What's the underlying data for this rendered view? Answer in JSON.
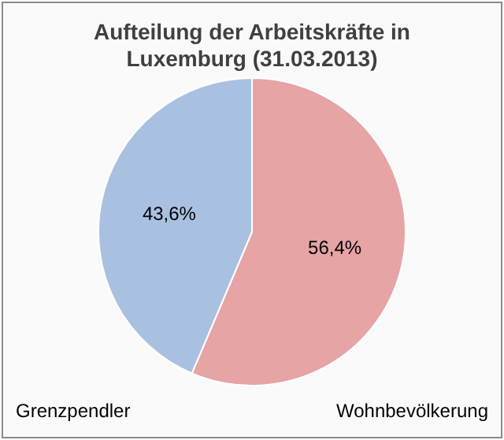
{
  "chart_data": {
    "type": "pie",
    "title": "Aufteilung der Arbeitskräfte in Luxemburg (31.03.2013)",
    "categories": [
      "Wohnbevölkerung",
      "Grenzpendler"
    ],
    "values": [
      56.4,
      43.6
    ],
    "colors": [
      "#e6a4a4",
      "#a9c1e1"
    ],
    "value_labels": [
      "56,4%",
      "43,6%"
    ],
    "legend": false
  }
}
